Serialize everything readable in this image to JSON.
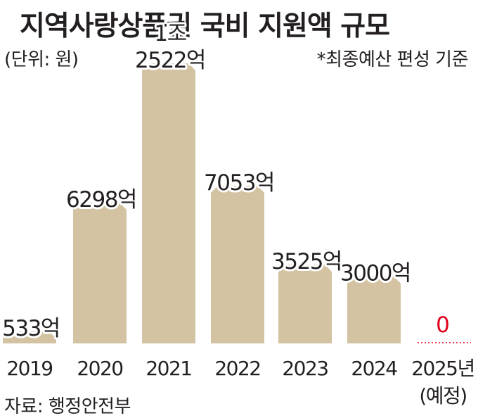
{
  "header": {
    "title": "지역사랑상품권 국비 지원액 규모",
    "unit": "(단위: 원)",
    "note": "*최종예산 편성 기준"
  },
  "footer": {
    "source": "자료: 행정안전부"
  },
  "colors": {
    "bar": "#d3c3a2",
    "zero": "#e0001b",
    "text": "#231f20"
  },
  "chart_data": {
    "type": "bar",
    "categories": [
      "2019",
      "2020",
      "2021",
      "2022",
      "2023",
      "2024",
      "2025년"
    ],
    "category_sublabels": [
      "",
      "",
      "",
      "",
      "",
      "",
      "(예정)"
    ],
    "values": [
      533,
      6298,
      12522,
      7053,
      3525,
      3000,
      0
    ],
    "value_labels": [
      [
        "533억"
      ],
      [
        "6298억"
      ],
      [
        "1조",
        "2522억"
      ],
      [
        "7053억"
      ],
      [
        "3525억"
      ],
      [
        "3000억"
      ],
      [
        "0"
      ]
    ],
    "unit": "억 원",
    "ylim": [
      0,
      12522
    ],
    "grid": false,
    "legend": "none"
  }
}
